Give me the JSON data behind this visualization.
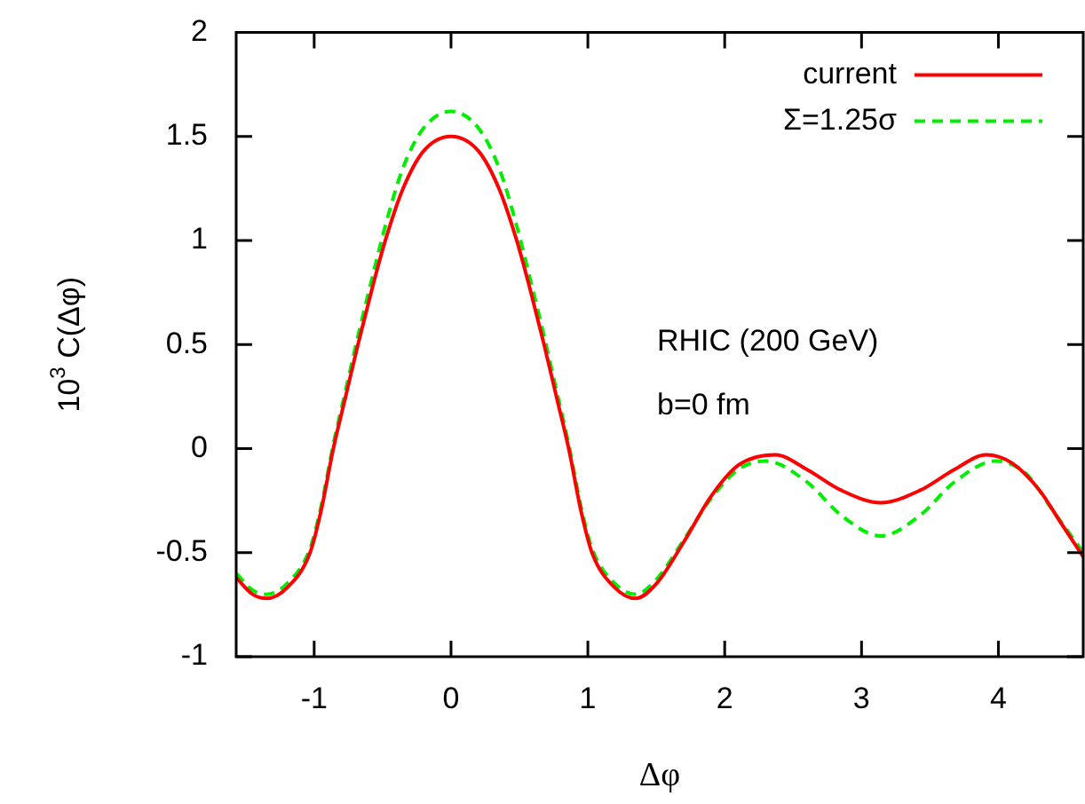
{
  "chart_data": {
    "type": "line",
    "xlabel": "Δφ",
    "ylabel": "10$^{3}$ C(Δφ)",
    "annotations": [
      "RHIC (200 GeV)",
      "b=0 fm"
    ],
    "xlim": [
      -1.57,
      4.62
    ],
    "xticks": [
      -1,
      0,
      1,
      2,
      3,
      4
    ],
    "ylim": [
      -1,
      2
    ],
    "yticks": [
      -1,
      -0.5,
      0,
      0.5,
      1,
      1.5,
      2
    ],
    "legend": "top right",
    "marker": "none",
    "series": [
      {
        "name": "current",
        "color": "#ff0000",
        "line_style": "solid",
        "x": [
          -1.57,
          -1.45,
          -1.35,
          -1.2,
          -1.03,
          -0.95,
          -0.86,
          -0.77,
          -0.68,
          -0.58,
          -0.48,
          -0.35,
          -0.2,
          0,
          0.2,
          0.35,
          0.48,
          0.58,
          0.68,
          0.77,
          0.86,
          0.95,
          1.03,
          1.2,
          1.35,
          1.5,
          1.7,
          1.9,
          2.1,
          2.37,
          2.6,
          2.85,
          3.14,
          3.43,
          3.68,
          3.91,
          4.1,
          4.3,
          4.45,
          4.62
        ],
        "values": [
          -0.62,
          -0.7,
          -0.72,
          -0.67,
          -0.5,
          -0.3,
          0,
          0.25,
          0.5,
          0.76,
          1.0,
          1.25,
          1.43,
          1.5,
          1.43,
          1.25,
          1.0,
          0.76,
          0.5,
          0.25,
          0,
          -0.3,
          -0.5,
          -0.67,
          -0.72,
          -0.65,
          -0.45,
          -0.23,
          -0.08,
          -0.03,
          -0.1,
          -0.2,
          -0.26,
          -0.2,
          -0.1,
          -0.03,
          -0.07,
          -0.2,
          -0.35,
          -0.52
        ]
      },
      {
        "name": "Σ=1.25σ",
        "color": "#00ee00",
        "line_style": "dashed",
        "x": [
          -1.57,
          -1.45,
          -1.35,
          -1.2,
          -1.03,
          -0.95,
          -0.86,
          -0.77,
          -0.68,
          -0.58,
          -0.48,
          -0.35,
          -0.2,
          0,
          0.2,
          0.35,
          0.48,
          0.58,
          0.68,
          0.77,
          0.86,
          0.95,
          1.03,
          1.2,
          1.35,
          1.5,
          1.7,
          1.9,
          2.1,
          2.3,
          2.6,
          2.85,
          3.14,
          3.43,
          3.68,
          3.98,
          4.2,
          4.4,
          4.62
        ],
        "values": [
          -0.6,
          -0.68,
          -0.7,
          -0.65,
          -0.48,
          -0.28,
          0.02,
          0.28,
          0.54,
          0.81,
          1.07,
          1.35,
          1.54,
          1.62,
          1.54,
          1.35,
          1.07,
          0.81,
          0.54,
          0.28,
          0.02,
          -0.28,
          -0.48,
          -0.65,
          -0.7,
          -0.63,
          -0.44,
          -0.24,
          -0.1,
          -0.06,
          -0.16,
          -0.32,
          -0.42,
          -0.32,
          -0.16,
          -0.06,
          -0.12,
          -0.3,
          -0.5
        ]
      }
    ]
  }
}
